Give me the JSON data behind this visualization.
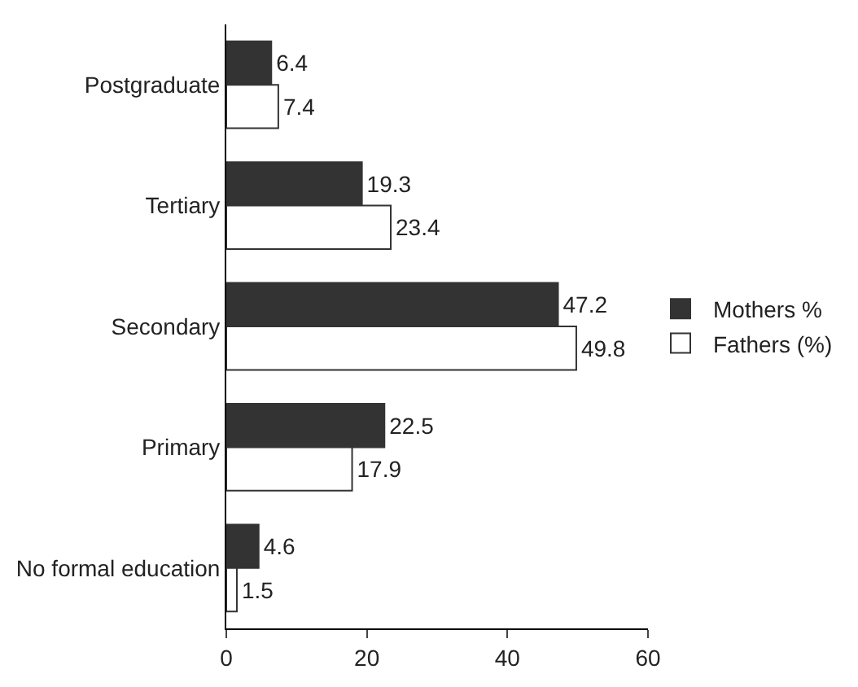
{
  "chart_data": {
    "type": "bar",
    "orientation": "horizontal",
    "categories": [
      "Postgraduate",
      "Tertiary",
      "Secondary",
      "Primary",
      "No formal education"
    ],
    "series": [
      {
        "name": "Mothers %",
        "color": "#333333",
        "values": [
          6.4,
          19.3,
          47.2,
          22.5,
          4.6
        ]
      },
      {
        "name": "Fathers (%)",
        "color": "#ffffff",
        "values": [
          7.4,
          23.4,
          49.8,
          17.9,
          1.5
        ]
      }
    ],
    "xlim": [
      0,
      60
    ],
    "xticks": [
      0,
      20,
      40,
      60
    ],
    "legend": "right",
    "data_labels": true
  }
}
